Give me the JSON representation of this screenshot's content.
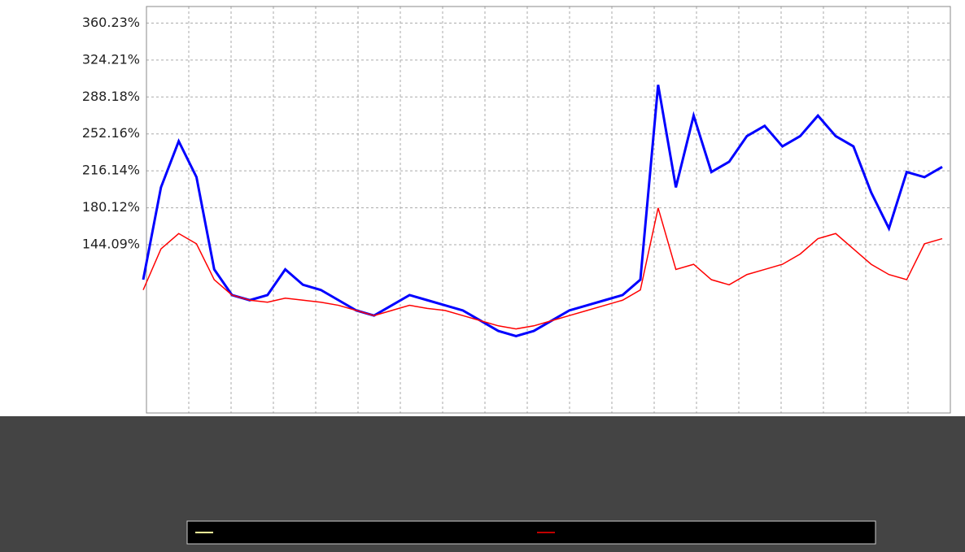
{
  "chart_data": {
    "type": "line",
    "ylim": [
      -20,
      376.4
    ],
    "yticks": [
      {
        "value": 144.09,
        "label": "144.09%"
      },
      {
        "value": 180.12,
        "label": "180.12%"
      },
      {
        "value": 216.14,
        "label": "216.14%"
      },
      {
        "value": 252.16,
        "label": "252.16%"
      },
      {
        "value": 288.18,
        "label": "288.18%"
      },
      {
        "value": 324.21,
        "label": "324.21%"
      },
      {
        "value": 360.23,
        "label": "360.23%"
      }
    ],
    "grid": true,
    "series": [
      {
        "color": "#0000ff",
        "values": [
          110,
          200,
          245,
          210,
          120,
          95,
          90,
          95,
          120,
          105,
          100,
          90,
          80,
          75,
          85,
          95,
          90,
          85,
          80,
          70,
          60,
          55,
          60,
          70,
          80,
          85,
          90,
          95,
          110,
          300,
          200,
          270,
          215,
          225,
          250,
          260,
          240,
          250,
          270,
          250,
          240,
          195,
          160,
          215,
          210,
          220
        ]
      },
      {
        "color": "#ff0000",
        "values": [
          100,
          140,
          155,
          145,
          110,
          95,
          90,
          88,
          92,
          90,
          88,
          85,
          80,
          75,
          80,
          85,
          82,
          80,
          75,
          70,
          65,
          62,
          65,
          70,
          75,
          80,
          85,
          90,
          100,
          180,
          120,
          125,
          110,
          105,
          115,
          120,
          125,
          135,
          150,
          155,
          140,
          125,
          115,
          110,
          145,
          150
        ]
      }
    ]
  }
}
